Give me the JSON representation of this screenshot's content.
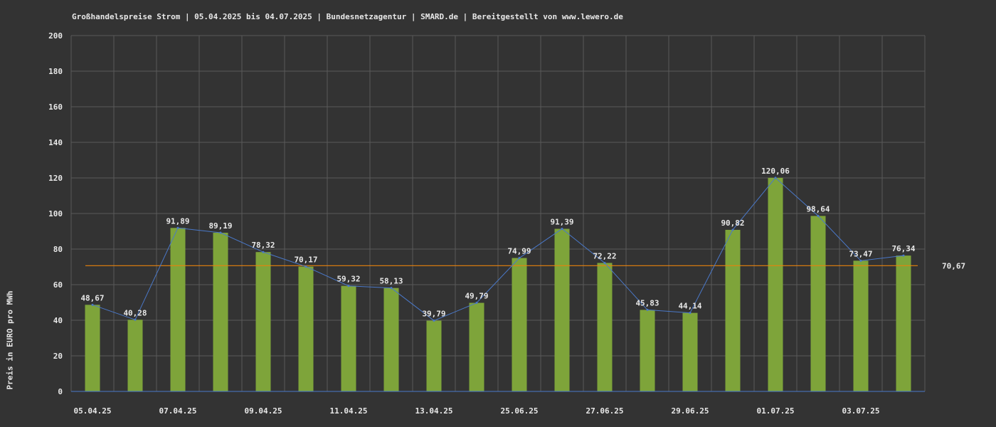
{
  "chart_data": {
    "type": "bar",
    "title": "Großhandelspreise Strom | 05.04.2025 bis 04.07.2025 | Bundesnetzagentur | SMARD.de | Bereitgestellt von www.lewero.de",
    "ylabel": "Preis in EURO pro MWh",
    "xlabel": "",
    "ylim": [
      0,
      200
    ],
    "y_ticks": [
      "0",
      "20",
      "40",
      "60",
      "80",
      "100",
      "120",
      "140",
      "160",
      "180",
      "200"
    ],
    "x_tick_labels": [
      "05.04.25",
      "07.04.25",
      "09.04.25",
      "11.04.25",
      "13.04.25",
      "25.06.25",
      "27.06.25",
      "29.06.25",
      "01.07.25",
      "03.07.25"
    ],
    "x_tick_label_every": 2,
    "values": [
      48.67,
      40.28,
      91.89,
      89.19,
      78.32,
      70.17,
      59.32,
      58.13,
      39.79,
      49.79,
      74.99,
      91.39,
      72.22,
      45.83,
      44.14,
      90.82,
      120.06,
      98.64,
      73.47,
      76.34
    ],
    "value_labels": [
      "48,67",
      "40,28",
      "91,89",
      "89,19",
      "78,32",
      "70,17",
      "59,32",
      "58,13",
      "39,79",
      "49,79",
      "74,99",
      "91,39",
      "72,22",
      "45,83",
      "44,14",
      "90,82",
      "120,06",
      "98,64",
      "73,47",
      "76,34"
    ],
    "average": 70.67,
    "average_label": "70,67",
    "grid": true,
    "overlay_line": true,
    "colors": {
      "background": "#333333",
      "grid": "#5a5a5a",
      "bar": "#7ea43a",
      "line": "#4a78c8",
      "average": "#e8820c",
      "text": "#e8e8e8"
    }
  }
}
